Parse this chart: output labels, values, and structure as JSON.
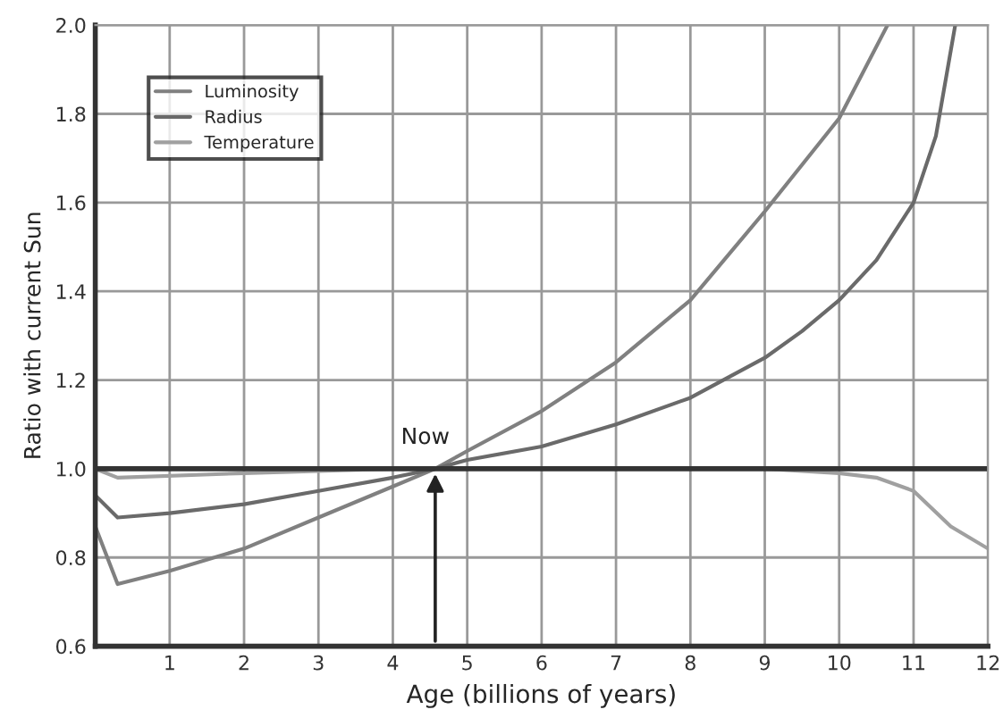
{
  "chart_data": {
    "type": "line",
    "xlabel": "Age (billions of years)",
    "ylabel": "Ratio with current Sun",
    "series": [
      {
        "name": "Luminosity",
        "color": "#808080",
        "x": [
          0,
          0.3,
          1,
          2,
          3,
          4,
          4.57,
          5,
          6,
          7,
          8,
          9,
          10,
          10.65
        ],
        "values": [
          0.87,
          0.74,
          0.77,
          0.82,
          0.89,
          0.96,
          1.0,
          1.04,
          1.13,
          1.24,
          1.38,
          1.58,
          1.79,
          2.0
        ]
      },
      {
        "name": "Radius",
        "color": "#6a6a6a",
        "x": [
          0,
          0.3,
          1,
          2,
          3,
          4,
          4.57,
          5,
          6,
          7,
          8,
          9,
          9.5,
          10,
          10.5,
          11,
          11.3,
          11.56
        ],
        "values": [
          0.94,
          0.89,
          0.9,
          0.92,
          0.95,
          0.98,
          1.0,
          1.02,
          1.05,
          1.1,
          1.16,
          1.25,
          1.31,
          1.38,
          1.47,
          1.6,
          1.75,
          2.0
        ]
      },
      {
        "name": "Temperature",
        "color": "#a0a0a0",
        "x": [
          0,
          0.3,
          2,
          4,
          6,
          8,
          9,
          10,
          10.5,
          11,
          11.5,
          12
        ],
        "values": [
          1.0,
          0.98,
          0.99,
          1.0,
          1.0,
          1.0,
          1.0,
          0.99,
          0.98,
          0.95,
          0.87,
          0.82
        ]
      }
    ],
    "ref_lines": [
      {
        "axis": "y",
        "value": 1.0,
        "color": "#333333"
      }
    ],
    "annotations": [
      {
        "text": "Now",
        "x": 4.57,
        "y": 1.0
      }
    ],
    "xlim": [
      0,
      12
    ],
    "xticks": [
      {
        "value": 0,
        "label": null
      },
      1,
      2,
      3,
      4,
      5,
      6,
      7,
      8,
      9,
      10,
      11,
      12
    ],
    "ylim": [
      0.6,
      2.0
    ],
    "yticks": [
      {
        "value": 0.6,
        "label": "0.6"
      },
      {
        "value": 0.8,
        "label": "0.8"
      },
      {
        "value": 1.0,
        "label": "1.0"
      },
      {
        "value": 1.2,
        "label": "1.2"
      },
      {
        "value": 1.4,
        "label": "1.4"
      },
      {
        "value": 1.6,
        "label": "1.6"
      },
      {
        "value": 1.8,
        "label": "1.8"
      },
      {
        "value": 2.0,
        "label": "2.0"
      }
    ],
    "grid": true,
    "legend": "top left",
    "marker": "none",
    "line_style": "solid"
  }
}
